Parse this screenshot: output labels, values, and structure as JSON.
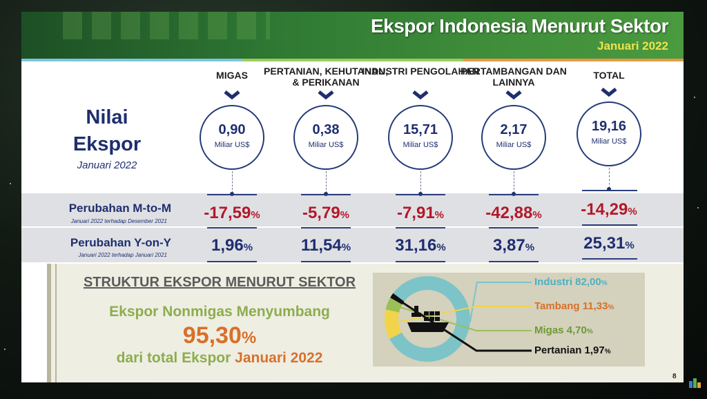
{
  "header": {
    "title": "Ekspor Indonesia Menurut Sektor",
    "subtitle": "Januari 2022"
  },
  "nilai": {
    "line1": "Nilai",
    "line2": "Ekspor",
    "period": "Januari 2022"
  },
  "sectors": [
    {
      "label": "MIGAS",
      "value": "0,90",
      "unit": "Miliar US$",
      "mtm": "-17,59",
      "yoy": "1,96"
    },
    {
      "label": "PERTANIAN, KEHUTANAN, & PERIKANAN",
      "value": "0,38",
      "unit": "Miliar US$",
      "mtm": "-5,79",
      "yoy": "11,54"
    },
    {
      "label": "INDUSTRI PENGOLAHAN",
      "value": "15,71",
      "unit": "Miliar US$",
      "mtm": "-7,91",
      "yoy": "31,16"
    },
    {
      "label": "PERTAMBANGAN DAN LAINNYA",
      "value": "2,17",
      "unit": "Miliar US$",
      "mtm": "-42,88",
      "yoy": "3,87"
    },
    {
      "label": "TOTAL",
      "value": "19,16",
      "unit": "Miliar US$",
      "mtm": "-14,29",
      "yoy": "25,31"
    }
  ],
  "pct_sign": "%",
  "rows": {
    "mtm": {
      "label": "Perubahan M-to-M",
      "note": "Januari 2022 terhadap Desember 2021"
    },
    "yoy": {
      "label": "Perubahan Y-on-Y",
      "note": "Januari 2022 terhadap Januari 2021"
    }
  },
  "struktur": {
    "title": "STRUKTUR EKSPOR MENURUT SEKTOR",
    "line1": "Ekspor Nonmigas Menyumbang",
    "big_value": "95,30",
    "line3_a": "dari total Ekspor",
    "line3_b": "Januari 2022"
  },
  "chart_data": {
    "type": "pie",
    "slices": [
      {
        "label": "Industri",
        "value": 82.0,
        "text": "Industri 82,00",
        "color": "#7cc4c8"
      },
      {
        "label": "Tambang",
        "value": 11.33,
        "text": "Tambang 11,33",
        "color": "#f2d44b"
      },
      {
        "label": "Migas",
        "value": 4.7,
        "text": "Migas 4,70",
        "color": "#9bbf55"
      },
      {
        "label": "Pertanian",
        "value": 1.97,
        "text": "Pertanian 1,97",
        "color": "#111111"
      }
    ]
  },
  "legend_text_colors": [
    "#4fb0c2",
    "#d8702a",
    "#6e9a34",
    "#111111"
  ],
  "colors": {
    "navy": "#1e2e6e",
    "red": "#b3182a",
    "green": "#8cad4e",
    "orange": "#d8702a"
  },
  "icons": {
    "chevron": "chevron-down-icon",
    "ship": "cargo-ship-icon"
  },
  "page_number": "8"
}
